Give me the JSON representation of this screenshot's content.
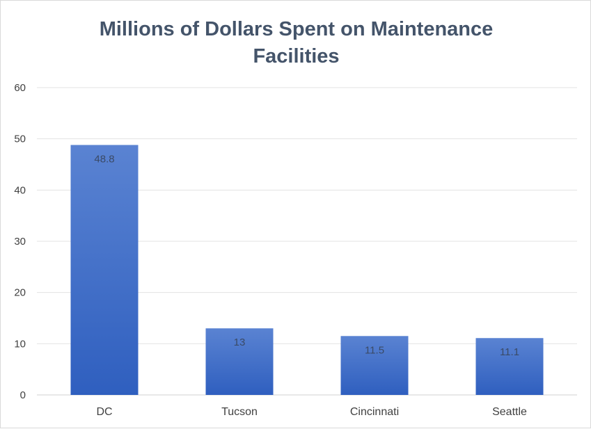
{
  "chart_data": {
    "type": "bar",
    "title_lines": [
      "Millions of Dollars Spent on Maintenance",
      "Facilities"
    ],
    "title": "Millions of Dollars Spent on Maintenance Facilities",
    "categories": [
      "DC",
      "Tucson",
      "Cincinnati",
      "Seattle"
    ],
    "values": [
      48.8,
      13,
      11.5,
      11.1
    ],
    "data_labels": [
      "48.8",
      "13",
      "11.5",
      "11.1"
    ],
    "xlabel": "",
    "ylabel": "",
    "ylim": [
      0,
      60
    ],
    "yticks": [
      0,
      10,
      20,
      30,
      40,
      50,
      60
    ],
    "grid": true,
    "legend": "none",
    "bar_color_top": "#5a83d2",
    "bar_color_bottom": "#2f5fbf",
    "title_color": "#44546a"
  }
}
